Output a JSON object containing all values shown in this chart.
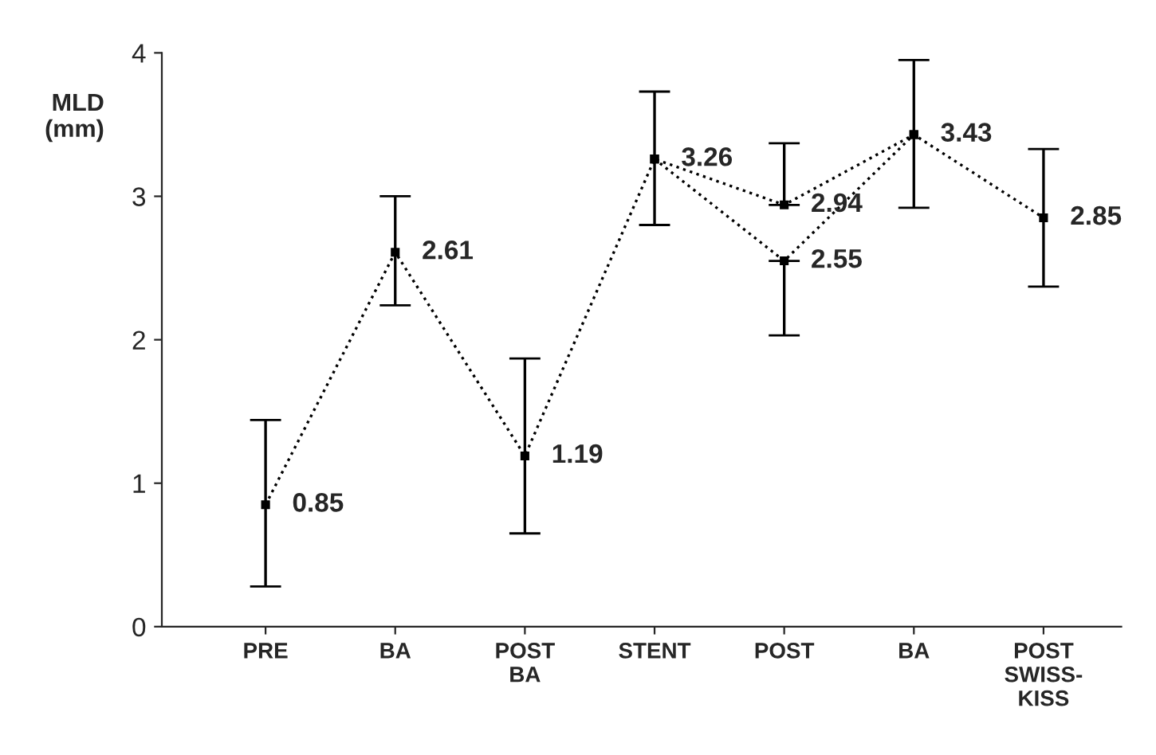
{
  "chart_data": {
    "type": "line",
    "ylabel": "MLD\n(mm)",
    "categories": [
      "PRE",
      "BA",
      "POST\nBA",
      "STENT",
      "POST",
      "BA",
      "POST\nSWISS-\nKISS"
    ],
    "series": [
      {
        "color": "#000000",
        "values": [
          0.85,
          2.61,
          1.19,
          3.26,
          2.94,
          3.43,
          2.85
        ],
        "errors": [
          [
            0.28,
            1.44
          ],
          [
            2.24,
            3.0
          ],
          [
            0.65,
            1.87
          ],
          [
            2.8,
            3.73
          ],
          [
            2.94,
            3.37
          ],
          [
            2.92,
            3.95
          ],
          [
            2.37,
            3.33
          ]
        ],
        "value_labels": [
          "0.85",
          "2.61",
          "1.19",
          "3.26",
          "2.94",
          "3.43",
          "2.85"
        ]
      },
      {
        "color": "#000000",
        "values": [
          null,
          null,
          null,
          3.26,
          2.55,
          3.43,
          null
        ],
        "errors": [
          null,
          null,
          null,
          null,
          [
            2.03,
            2.55
          ],
          null,
          null
        ],
        "value_labels": [
          null,
          null,
          null,
          null,
          "2.55",
          null,
          null
        ]
      }
    ],
    "ylim": [
      0,
      4
    ],
    "yticks": [
      0,
      1,
      2,
      3,
      4
    ],
    "grid": false,
    "marker": "square",
    "line_style": "dotted"
  }
}
